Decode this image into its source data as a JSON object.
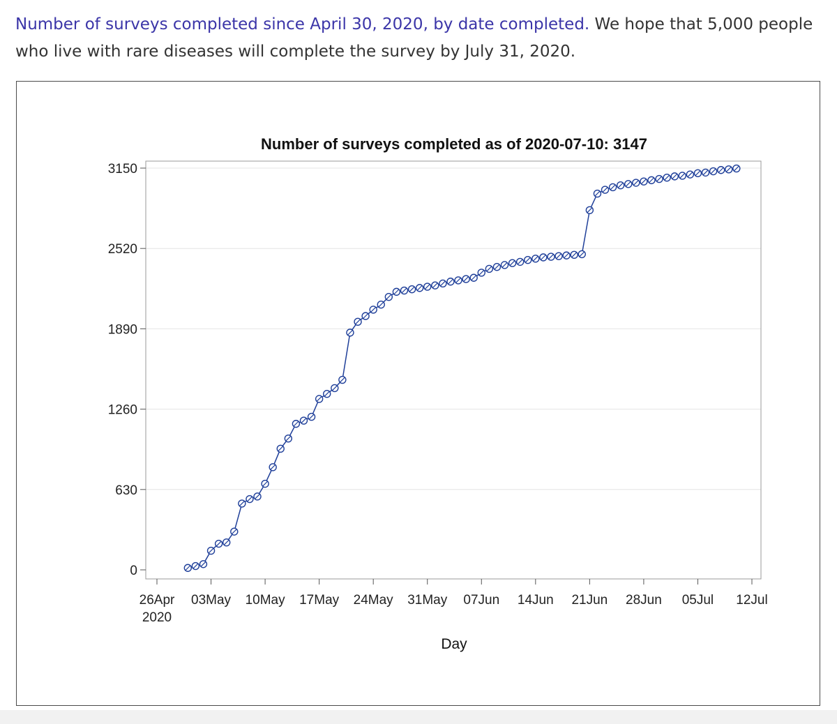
{
  "caption": {
    "link_text": "Number of surveys completed since April 30, 2020, by date completed.",
    "rest_text": " We hope that 5,000 people who live with rare diseases will complete the survey by July 31, 2020."
  },
  "colors": {
    "series": "#1f3f99",
    "caption_link": "#3b35a8",
    "grid": "#e4e4e4"
  },
  "chart_data": {
    "type": "line",
    "title": "Number of surveys completed as of 2020-07-10: 3147",
    "xlabel": "Day",
    "ylabel": "",
    "ylim": [
      0,
      3150
    ],
    "yticks": [
      0,
      630,
      1260,
      1890,
      2520,
      3150
    ],
    "xlim": [
      "2020-04-26",
      "2020-07-12"
    ],
    "xticks": [
      {
        "date": "2020-04-26",
        "label": "26Apr",
        "sub": "2020"
      },
      {
        "date": "2020-05-03",
        "label": "03May"
      },
      {
        "date": "2020-05-10",
        "label": "10May"
      },
      {
        "date": "2020-05-17",
        "label": "17May"
      },
      {
        "date": "2020-05-24",
        "label": "24May"
      },
      {
        "date": "2020-05-31",
        "label": "31May"
      },
      {
        "date": "2020-06-07",
        "label": "07Jun"
      },
      {
        "date": "2020-06-14",
        "label": "14Jun"
      },
      {
        "date": "2020-06-21",
        "label": "21Jun"
      },
      {
        "date": "2020-06-28",
        "label": "28Jun"
      },
      {
        "date": "2020-07-05",
        "label": "05Jul"
      },
      {
        "date": "2020-07-12",
        "label": "12Jul"
      }
    ],
    "grid": true,
    "marker": "circle-slash",
    "series": [
      {
        "x": [
          "2020-04-30",
          "2020-05-01",
          "2020-05-02",
          "2020-05-03",
          "2020-05-04",
          "2020-05-05",
          "2020-05-06",
          "2020-05-07",
          "2020-05-08",
          "2020-05-09",
          "2020-05-10",
          "2020-05-11",
          "2020-05-12",
          "2020-05-13",
          "2020-05-14",
          "2020-05-15",
          "2020-05-16",
          "2020-05-17",
          "2020-05-18",
          "2020-05-19",
          "2020-05-20",
          "2020-05-21",
          "2020-05-22",
          "2020-05-23",
          "2020-05-24",
          "2020-05-25",
          "2020-05-26",
          "2020-05-27",
          "2020-05-28",
          "2020-05-29",
          "2020-05-30",
          "2020-05-31",
          "2020-06-01",
          "2020-06-02",
          "2020-06-03",
          "2020-06-04",
          "2020-06-05",
          "2020-06-06",
          "2020-06-07",
          "2020-06-08",
          "2020-06-09",
          "2020-06-10",
          "2020-06-11",
          "2020-06-12",
          "2020-06-13",
          "2020-06-14",
          "2020-06-15",
          "2020-06-16",
          "2020-06-17",
          "2020-06-18",
          "2020-06-19",
          "2020-06-20",
          "2020-06-21",
          "2020-06-22",
          "2020-06-23",
          "2020-06-24",
          "2020-06-25",
          "2020-06-26",
          "2020-06-27",
          "2020-06-28",
          "2020-06-29",
          "2020-06-30",
          "2020-07-01",
          "2020-07-02",
          "2020-07-03",
          "2020-07-04",
          "2020-07-05",
          "2020-07-06",
          "2020-07-07",
          "2020-07-08",
          "2020-07-09",
          "2020-07-10"
        ],
        "values": [
          15,
          30,
          45,
          150,
          205,
          215,
          300,
          520,
          555,
          575,
          675,
          805,
          950,
          1030,
          1145,
          1170,
          1200,
          1340,
          1380,
          1425,
          1490,
          1860,
          1945,
          1990,
          2040,
          2080,
          2140,
          2180,
          2190,
          2200,
          2210,
          2220,
          2230,
          2245,
          2260,
          2270,
          2280,
          2290,
          2330,
          2360,
          2375,
          2390,
          2405,
          2415,
          2430,
          2440,
          2450,
          2455,
          2460,
          2465,
          2470,
          2475,
          2820,
          2950,
          2980,
          3000,
          3015,
          3025,
          3035,
          3045,
          3055,
          3065,
          3075,
          3085,
          3090,
          3100,
          3110,
          3115,
          3125,
          3135,
          3140,
          3147
        ]
      }
    ]
  }
}
